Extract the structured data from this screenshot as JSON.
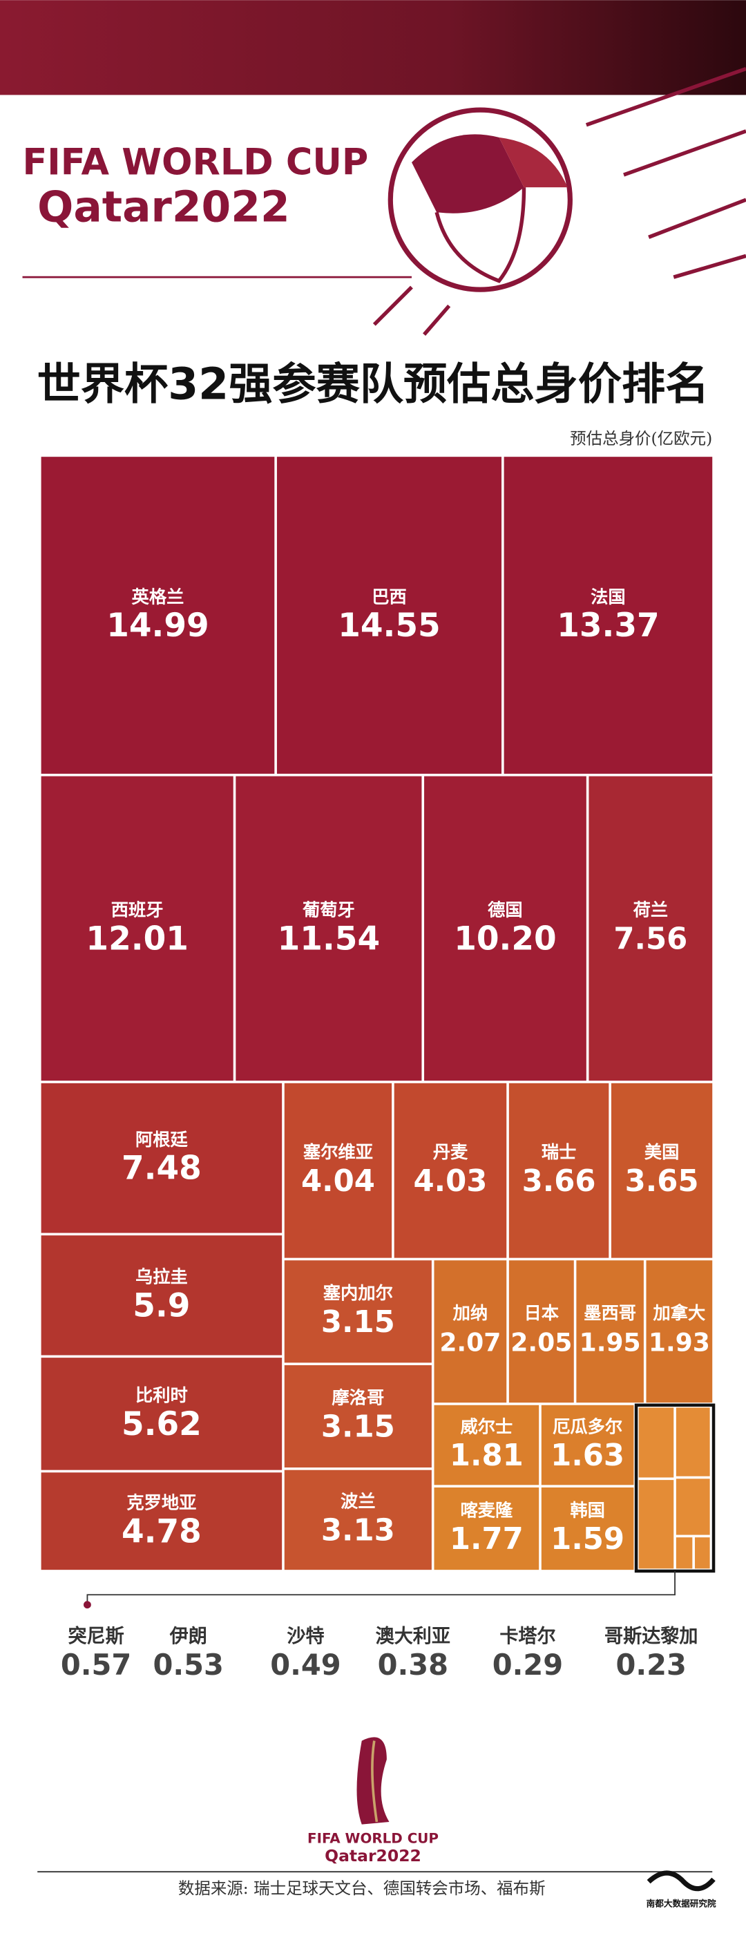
{
  "header": {
    "logo_line1": "FIFA WORLD CUP",
    "logo_line2": "Qatar2022"
  },
  "chart_data": {
    "type": "treemap",
    "title": "世界杯32强参赛队预估总身价排名",
    "unit_label": "预估总身价(亿欧元)",
    "categories": [
      "英格兰",
      "巴西",
      "法国",
      "西班牙",
      "葡萄牙",
      "德国",
      "荷兰",
      "阿根廷",
      "塞尔维亚",
      "丹麦",
      "瑞士",
      "美国",
      "乌拉圭",
      "比利时",
      "克罗地亚",
      "塞内加尔",
      "摩洛哥",
      "波兰",
      "加纳",
      "日本",
      "墨西哥",
      "加拿大",
      "威尔士",
      "厄瓜多尔",
      "喀麦隆",
      "韩国",
      "突尼斯",
      "伊朗",
      "沙特",
      "澳大利亚",
      "卡塔尔",
      "哥斯达黎加"
    ],
    "values": [
      14.99,
      14.55,
      13.37,
      12.01,
      11.54,
      10.2,
      7.56,
      7.48,
      4.04,
      4.03,
      3.66,
      3.65,
      5.9,
      5.62,
      4.78,
      3.15,
      3.15,
      3.13,
      2.07,
      2.05,
      1.95,
      1.93,
      1.81,
      1.63,
      1.77,
      1.59,
      0.57,
      0.53,
      0.49,
      0.38,
      0.29,
      0.23
    ],
    "value_labels": [
      "14.99",
      "14.55",
      "13.37",
      "12.01",
      "11.54",
      "10.20",
      "7.56",
      "7.48",
      "4.04",
      "4.03",
      "3.66",
      "3.65",
      "5.9",
      "5.62",
      "4.78",
      "3.15",
      "3.15",
      "3.13",
      "2.07",
      "2.05",
      "1.95",
      "1.93",
      "1.81",
      "1.63",
      "1.77",
      "1.59",
      "0.57",
      "0.53",
      "0.49",
      "0.38",
      "0.29",
      "0.23"
    ],
    "colors": [
      "#9b1a33",
      "#9b1a33",
      "#9b1a33",
      "#a01e34",
      "#a01e34",
      "#a01e34",
      "#a82833",
      "#b1312f",
      "#c2492e",
      "#c2492e",
      "#c5502d",
      "#c9582c",
      "#b3362e",
      "#b3372e",
      "#b63b2e",
      "#c6522f",
      "#c6522f",
      "#c7542f",
      "#d3702b",
      "#d3702b",
      "#d5742b",
      "#d5742b",
      "#db7f2c",
      "#db7f2c",
      "#dc822c",
      "#dc822c",
      "#e48c36",
      "#e48c36",
      "#e48c36",
      "#e48c36",
      "#e48c36",
      "#e48c36"
    ]
  },
  "footer": {
    "logo_line1": "FIFA WORLD CUP",
    "logo_line2": "Qatar2022",
    "source": "数据来源: 瑞士足球天文台、德国转会市场、福布斯",
    "brand": "南都大数据研究院"
  }
}
